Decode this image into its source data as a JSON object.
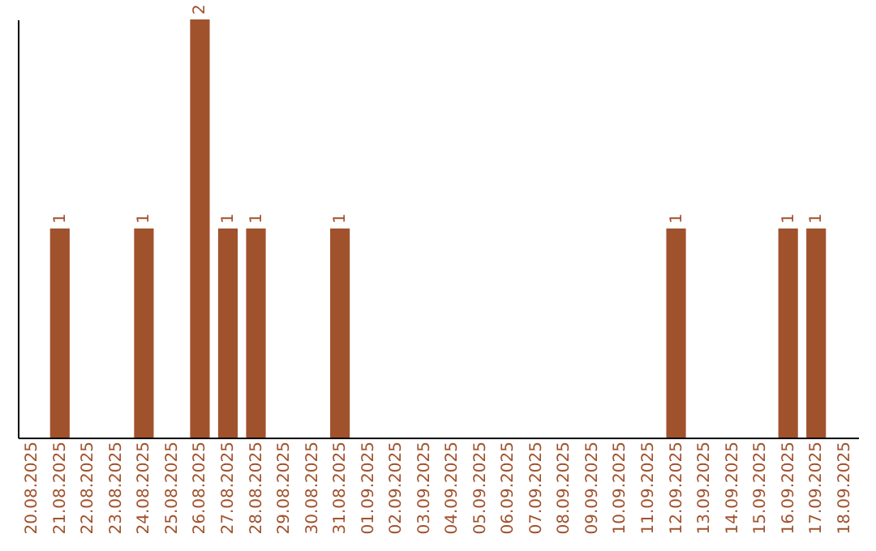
{
  "chart_data": {
    "type": "bar",
    "categories": [
      "20.08.2025",
      "21.08.2025",
      "22.08.2025",
      "23.08.2025",
      "24.08.2025",
      "25.08.2025",
      "26.08.2025",
      "27.08.2025",
      "28.08.2025",
      "29.08.2025",
      "30.08.2025",
      "31.08.2025",
      "01.09.2025",
      "02.09.2025",
      "03.09.2025",
      "04.09.2025",
      "05.09.2025",
      "06.09.2025",
      "07.09.2025",
      "08.09.2025",
      "09.09.2025",
      "10.09.2025",
      "11.09.2025",
      "12.09.2025",
      "13.09.2025",
      "14.09.2025",
      "15.09.2025",
      "16.09.2025",
      "17.09.2025",
      "18.09.2025"
    ],
    "values": [
      0,
      1,
      0,
      0,
      1,
      0,
      2,
      1,
      1,
      0,
      0,
      1,
      0,
      0,
      0,
      0,
      0,
      0,
      0,
      0,
      0,
      0,
      0,
      1,
      0,
      0,
      0,
      1,
      1,
      0
    ],
    "value_labels": [
      null,
      "1",
      null,
      null,
      "1",
      null,
      "2",
      "1",
      "1",
      null,
      null,
      "1",
      null,
      null,
      null,
      null,
      null,
      null,
      null,
      null,
      null,
      null,
      null,
      "1",
      null,
      null,
      null,
      "1",
      "1",
      null
    ],
    "color": "#a0522d",
    "tick_labels": "x",
    "grid": false
  }
}
